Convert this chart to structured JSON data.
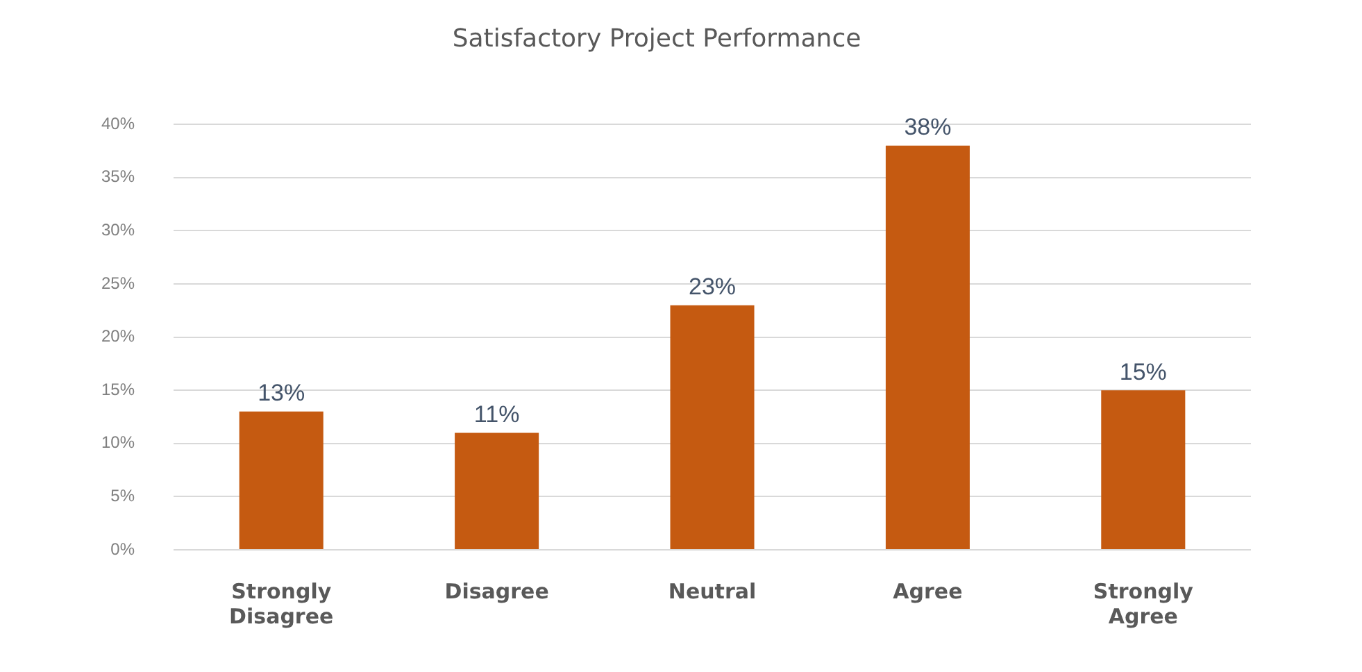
{
  "chart_data": {
    "type": "bar",
    "title": "Satisfactory Project Performance",
    "categories": [
      "Strongly Disagree",
      "Disagree",
      "Neutral",
      "Agree",
      "Strongly Agree"
    ],
    "values": [
      13,
      11,
      23,
      38,
      15
    ],
    "color": "#c55a11",
    "value_labels": [
      "13%",
      "11%",
      "23%",
      "38%",
      "15%"
    ],
    "ylim": [
      0,
      40
    ],
    "yticks": [
      {
        "value": 0,
        "label": "0%"
      },
      {
        "value": 5,
        "label": "5%"
      },
      {
        "value": 10,
        "label": "10%"
      },
      {
        "value": 15,
        "label": "15%"
      },
      {
        "value": 20,
        "label": "20%"
      },
      {
        "value": 25,
        "label": "25%"
      },
      {
        "value": 30,
        "label": "30%"
      },
      {
        "value": 35,
        "label": "35%"
      },
      {
        "value": 40,
        "label": "40%"
      }
    ],
    "grid": "y",
    "legend": false
  }
}
